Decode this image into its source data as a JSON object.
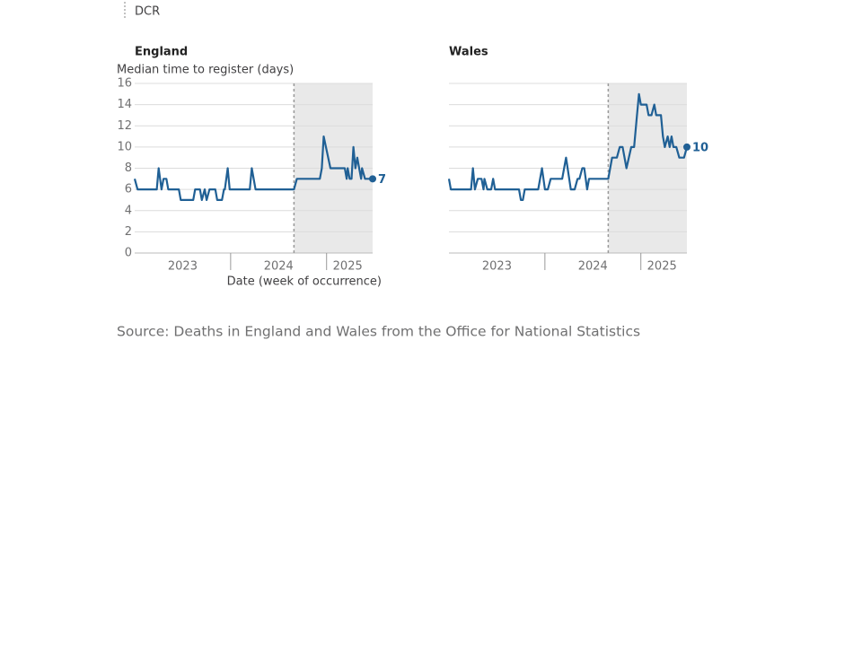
{
  "legend_label": "DCR",
  "source": "Source: Deaths in England and Wales from the Office for National Statistics",
  "chart_data": [
    {
      "type": "line",
      "title": "England",
      "ylabel": "Median time to register (days)",
      "xlabel": "Date (week of occurrence)",
      "ylim": [
        0,
        16
      ],
      "yticks": [
        0,
        2,
        4,
        6,
        8,
        10,
        12,
        14,
        16
      ],
      "ytick_labels": true,
      "xlim": [
        2023,
        2025.48
      ],
      "xticks": [
        {
          "value": 2023.5,
          "label": "2023"
        },
        {
          "value": 2024.5,
          "label": "2024"
        },
        {
          "value": 2025.22,
          "label": "2025"
        }
      ],
      "year_boundaries": [
        2024,
        2025
      ],
      "dcr": 2024.66,
      "grid": true,
      "series": [
        {
          "name": "England",
          "color": "#206095",
          "x": [
            2023.0,
            2023.03,
            2023.23,
            2023.25,
            2023.28,
            2023.3,
            2023.33,
            2023.35,
            2023.46,
            2023.48,
            2023.61,
            2023.63,
            2023.68,
            2023.7,
            2023.73,
            2023.75,
            2023.78,
            2023.84,
            2023.86,
            2023.91,
            2023.93,
            2023.94,
            2023.97,
            2023.99,
            2024.2,
            2024.22,
            2024.26,
            2024.66,
            2024.69,
            2024.93,
            2024.95,
            2024.97,
            2025.04,
            2025.19,
            2025.21,
            2025.22,
            2025.24,
            2025.26,
            2025.28,
            2025.3,
            2025.32,
            2025.34,
            2025.36,
            2025.37,
            2025.4,
            2025.48
          ],
          "values": [
            7,
            6,
            6,
            8,
            6,
            7,
            7,
            6,
            6,
            5,
            5,
            6,
            6,
            5,
            6,
            5,
            6,
            6,
            5,
            5,
            6,
            6,
            8,
            6,
            6,
            8,
            6,
            6,
            7,
            7,
            8,
            11,
            8,
            8,
            7,
            8,
            7,
            7,
            10,
            8,
            9,
            8,
            7,
            8,
            7,
            7
          ]
        }
      ]
    },
    {
      "type": "line",
      "title": "Wales",
      "ylim": [
        0,
        16
      ],
      "yticks": [
        0,
        2,
        4,
        6,
        8,
        10,
        12,
        14,
        16
      ],
      "ytick_labels": false,
      "xlim": [
        2023,
        2025.48
      ],
      "xticks": [
        {
          "value": 2023.5,
          "label": "2023"
        },
        {
          "value": 2024.5,
          "label": "2024"
        },
        {
          "value": 2025.22,
          "label": "2025"
        }
      ],
      "year_boundaries": [
        2024,
        2025
      ],
      "dcr": 2024.66,
      "grid": true,
      "series": [
        {
          "name": "Wales",
          "color": "#206095",
          "x": [
            2023.0,
            2023.02,
            2023.23,
            2023.25,
            2023.27,
            2023.3,
            2023.34,
            2023.36,
            2023.37,
            2023.4,
            2023.44,
            2023.46,
            2023.48,
            2023.73,
            2023.75,
            2023.77,
            2023.79,
            2023.93,
            2023.97,
            2024.0,
            2024.03,
            2024.06,
            2024.18,
            2024.22,
            2024.27,
            2024.31,
            2024.34,
            2024.36,
            2024.39,
            2024.41,
            2024.44,
            2024.46,
            2024.66,
            2024.7,
            2024.75,
            2024.78,
            2024.81,
            2024.85,
            2024.9,
            2024.93,
            2024.96,
            2024.98,
            2025.0,
            2025.06,
            2025.08,
            2025.11,
            2025.14,
            2025.16,
            2025.21,
            2025.23,
            2025.25,
            2025.28,
            2025.3,
            2025.32,
            2025.34,
            2025.37,
            2025.4,
            2025.45,
            2025.48
          ],
          "values": [
            7,
            6,
            6,
            8,
            6,
            7,
            7,
            6,
            7,
            6,
            6,
            7,
            6,
            6,
            5,
            5,
            6,
            6,
            8,
            6,
            6,
            7,
            7,
            9,
            6,
            6,
            7,
            7,
            8,
            8,
            6,
            7,
            7,
            9,
            9,
            10,
            10,
            8,
            10,
            10,
            13,
            15,
            14,
            14,
            13,
            13,
            14,
            13,
            13,
            11,
            10,
            11,
            10,
            11,
            10,
            10,
            9,
            9,
            10
          ]
        }
      ]
    }
  ]
}
